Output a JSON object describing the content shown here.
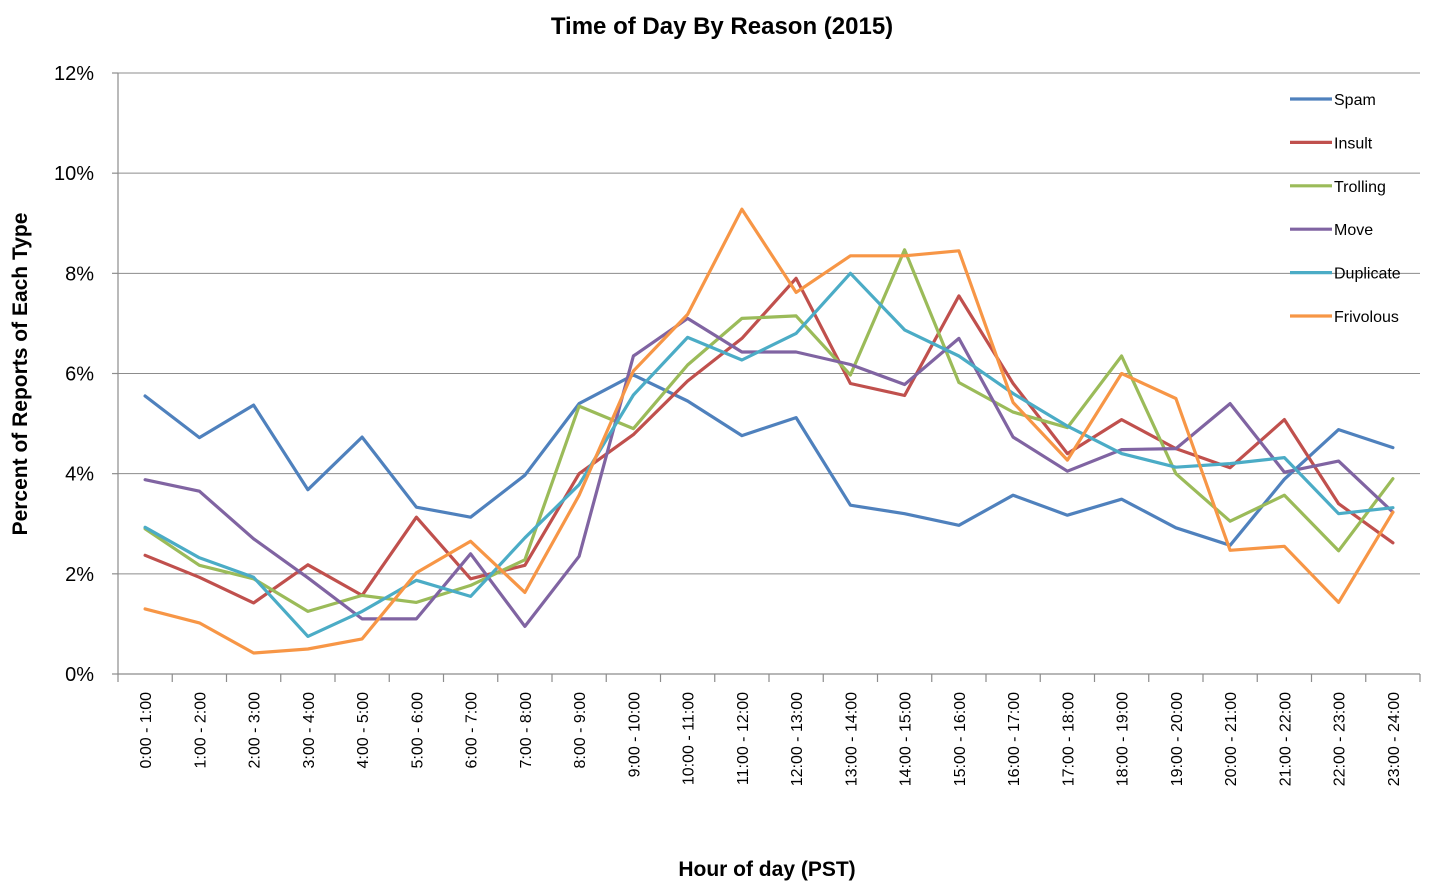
{
  "chart_data": {
    "type": "line",
    "title": "Time of Day By Reason (2015)",
    "xlabel": "Hour of day (PST)",
    "ylabel": "Percent of Reports of Each Type",
    "ylim": [
      0,
      12
    ],
    "y_ticks": [
      "0%",
      "2%",
      "4%",
      "6%",
      "8%",
      "10%",
      "12%"
    ],
    "grid": true,
    "legend_position": "top-right",
    "categories": [
      "0:00 - 1:00",
      "1:00 - 2:00",
      "2:00 - 3:00",
      "3:00 - 4:00",
      "4:00 - 5:00",
      "5:00 - 6:00",
      "6:00 - 7:00",
      "7:00 - 8:00",
      "8:00 - 9:00",
      "9:00 - 10:00",
      "10:00 - 11:00",
      "11:00 - 12:00",
      "12:00 - 13:00",
      "13:00 - 14:00",
      "14:00 - 15:00",
      "15:00 - 16:00",
      "16:00 - 17:00",
      "17:00 - 18:00",
      "18:00 - 19:00",
      "19:00 - 20:00",
      "20:00 - 21:00",
      "21:00 - 22:00",
      "22:00 - 23:00",
      "23:00 - 24:00"
    ],
    "series": [
      {
        "name": "Spam",
        "color": "#4f81bd",
        "values": [
          5.55,
          4.72,
          5.37,
          3.68,
          4.73,
          3.33,
          3.13,
          3.97,
          5.4,
          5.97,
          5.45,
          4.76,
          5.12,
          3.37,
          3.2,
          2.97,
          3.57,
          3.17,
          3.49,
          2.92,
          2.57,
          3.89,
          4.88,
          4.52
        ]
      },
      {
        "name": "Insult",
        "color": "#c0504d",
        "values": [
          2.37,
          1.93,
          1.42,
          2.18,
          1.57,
          3.13,
          1.9,
          2.17,
          4.0,
          4.78,
          5.85,
          6.7,
          7.9,
          5.8,
          5.56,
          7.55,
          5.8,
          4.4,
          5.08,
          4.5,
          4.12,
          5.08,
          3.4,
          2.62
        ]
      },
      {
        "name": "Trolling",
        "color": "#9bbb59",
        "values": [
          2.9,
          2.17,
          1.9,
          1.25,
          1.57,
          1.43,
          1.77,
          2.28,
          5.35,
          4.9,
          6.17,
          7.1,
          7.15,
          5.97,
          8.47,
          5.82,
          5.23,
          4.92,
          6.35,
          4.0,
          3.05,
          3.57,
          2.46,
          3.9
        ]
      },
      {
        "name": "Move",
        "color": "#8064a2",
        "values": [
          3.88,
          3.65,
          2.7,
          1.92,
          1.1,
          1.1,
          2.4,
          0.95,
          2.35,
          6.35,
          7.1,
          6.43,
          6.43,
          6.18,
          5.78,
          6.7,
          4.73,
          4.05,
          4.48,
          4.5,
          5.4,
          4.03,
          4.25,
          3.23
        ]
      },
      {
        "name": "Duplicate",
        "color": "#4bacc6",
        "values": [
          2.93,
          2.32,
          1.93,
          0.75,
          1.25,
          1.87,
          1.55,
          2.72,
          3.78,
          5.57,
          6.72,
          6.27,
          6.8,
          8.0,
          6.87,
          6.35,
          5.6,
          4.95,
          4.4,
          4.13,
          4.2,
          4.32,
          3.2,
          3.32
        ]
      },
      {
        "name": "Frivolous",
        "color": "#f79646",
        "values": [
          1.3,
          1.02,
          0.42,
          0.5,
          0.7,
          2.02,
          2.65,
          1.63,
          3.57,
          6.05,
          7.18,
          9.28,
          7.62,
          8.35,
          8.35,
          8.45,
          5.42,
          4.27,
          6.0,
          5.5,
          2.47,
          2.55,
          1.43,
          3.23
        ]
      }
    ]
  }
}
